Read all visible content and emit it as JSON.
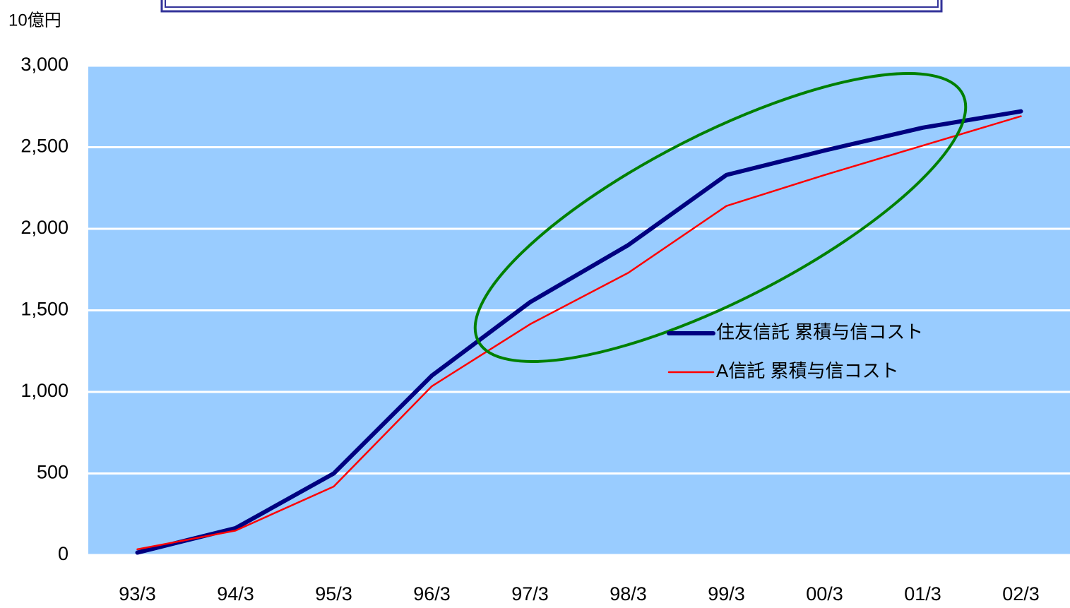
{
  "chart_data": {
    "type": "line",
    "y_axis_label": "10億円",
    "categories": [
      "93/3",
      "94/3",
      "95/3",
      "96/3",
      "97/3",
      "98/3",
      "99/3",
      "00/3",
      "01/3",
      "02/3"
    ],
    "series": [
      {
        "name": "住友信託 累積与信コスト",
        "color": "#000080",
        "values": [
          15,
          165,
          500,
          1100,
          1550,
          1900,
          2330,
          2480,
          2620,
          2720
        ]
      },
      {
        "name": "A信託 累積与信コスト",
        "color": "#ff0000",
        "values": [
          35,
          150,
          420,
          1035,
          1415,
          1730,
          2140,
          2330,
          2510,
          2690
        ]
      }
    ],
    "ylim": [
      0,
      3000
    ],
    "yticks": [
      0,
      500,
      {
        "value": 1000,
        "label": "1,000"
      },
      {
        "value": 1500,
        "label": "1,500"
      },
      {
        "value": 2000,
        "label": "2,000"
      },
      {
        "value": 2500,
        "label": "2,500"
      },
      {
        "value": 3000,
        "label": "3,000"
      }
    ],
    "grid": true,
    "background": "#99ccff"
  }
}
